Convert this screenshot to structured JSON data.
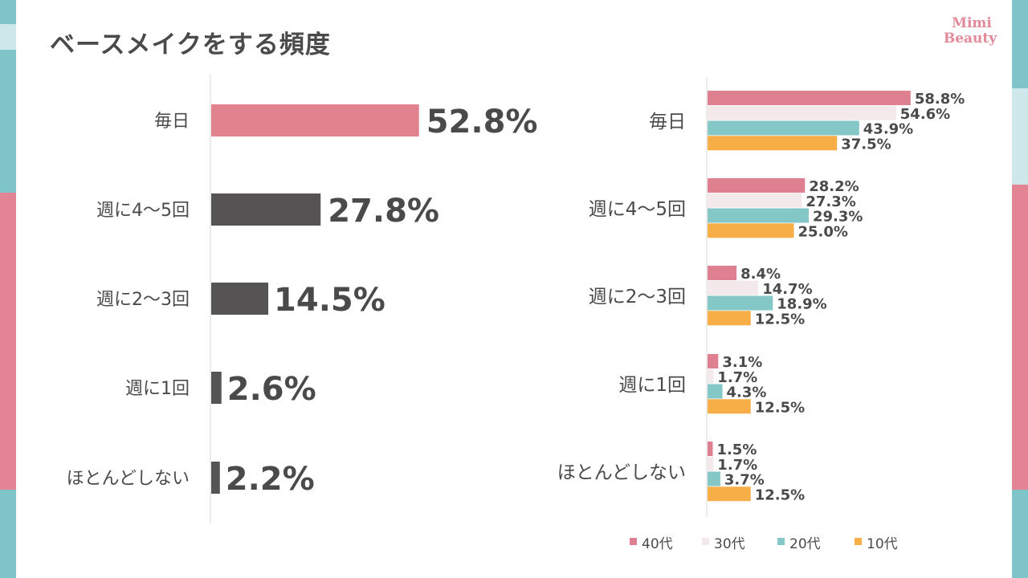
{
  "title": "ベースメイクをする頻度",
  "logo": {
    "line1": "Mimi",
    "line2": "Beauty"
  },
  "colors": {
    "overall_first": "#e0838f",
    "overall_rest": "#555354",
    "age40": "#de8090",
    "age30": "#f3e8ea",
    "age20": "#84c7c7",
    "age10": "#f8ae46",
    "stripe_teal": "#7fc4c9",
    "stripe_pink": "#e28494"
  },
  "chart_data": [
    {
      "type": "bar",
      "orientation": "horizontal",
      "title": "ベースメイクをする頻度",
      "categories": [
        "毎日",
        "週に4〜5回",
        "週に2〜3回",
        "週に1回",
        "ほとんどしない"
      ],
      "values": [
        52.8,
        27.8,
        14.5,
        2.6,
        2.2
      ],
      "value_labels": [
        "52.8%",
        "27.8%",
        "14.5%",
        "2.6%",
        "2.2%"
      ],
      "unit": "%",
      "xlim": [
        0,
        100
      ]
    },
    {
      "type": "bar",
      "orientation": "horizontal",
      "categories": [
        "毎日",
        "週に4〜5回",
        "週に2〜3回",
        "週に1回",
        "ほとんどしない"
      ],
      "series": [
        {
          "name": "40代",
          "color_key": "age40",
          "values": [
            58.8,
            28.2,
            8.4,
            3.1,
            1.5
          ],
          "labels": [
            "58.8%",
            "28.2%",
            "8.4%",
            "3.1%",
            "1.5%"
          ]
        },
        {
          "name": "30代",
          "color_key": "age30",
          "values": [
            54.6,
            27.3,
            14.7,
            1.7,
            1.7
          ],
          "labels": [
            "54.6%",
            "27.3%",
            "14.7%",
            "1.7%",
            "1.7%"
          ]
        },
        {
          "name": "20代",
          "color_key": "age20",
          "values": [
            43.9,
            29.3,
            18.9,
            4.3,
            3.7
          ],
          "labels": [
            "43.9%",
            "29.3%",
            "18.9%",
            "4.3%",
            "3.7%"
          ]
        },
        {
          "name": "10代",
          "color_key": "age10",
          "values": [
            37.5,
            25.0,
            12.5,
            12.5,
            12.5
          ],
          "labels": [
            "37.5%",
            "25.0%",
            "12.5%",
            "12.5%",
            "12.5%"
          ]
        }
      ],
      "legend": [
        "40代",
        "30代",
        "20代",
        "10代"
      ],
      "legend_position": "bottom",
      "unit": "%",
      "xlim": [
        0,
        100
      ]
    }
  ]
}
